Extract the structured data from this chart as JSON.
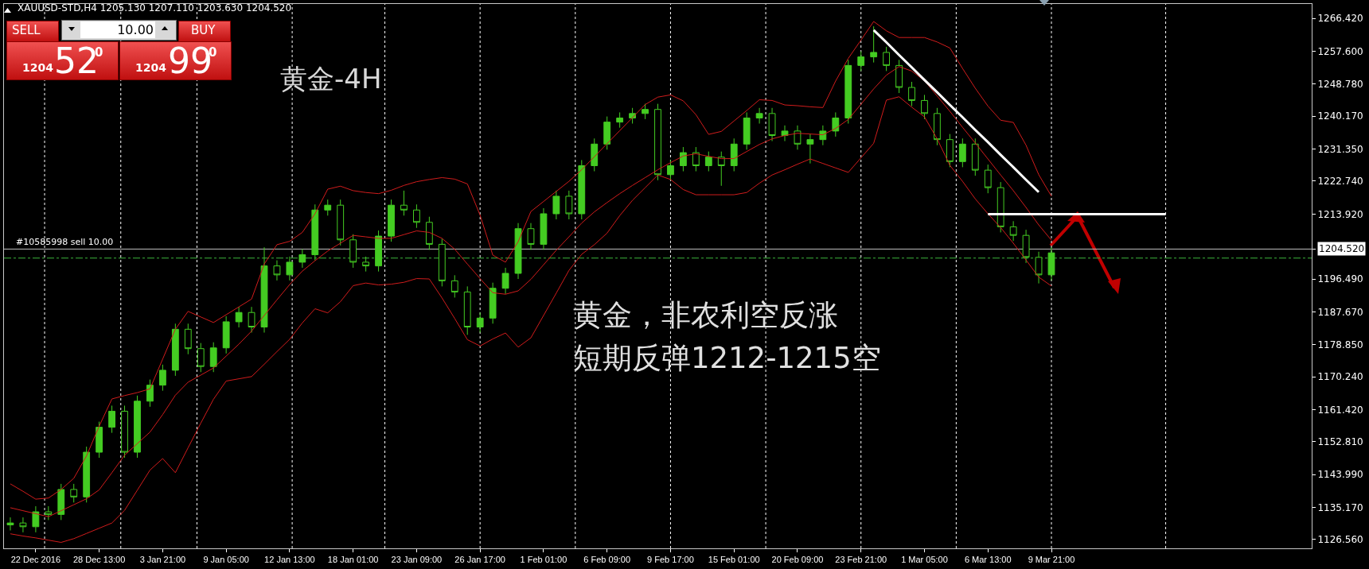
{
  "chart_data": {
    "type": "candlestick",
    "title": "XAUUSD-STD,H4 1205.130 1207.110 1203.630 1204.520",
    "annotations": [
      "黄金-4H",
      "黄金，非农利空反涨",
      "短期反弹1212-1215空",
      "SELL",
      "10.00",
      "BUY",
      "1204",
      "52",
      "0",
      "1204",
      "99",
      "0"
    ],
    "categories": [
      null,
      null,
      "22 Dec 2016",
      null,
      null,
      null,
      null,
      "28 Dec 13:00",
      null,
      null,
      null,
      null,
      "3 Jan 21:00",
      null,
      null,
      null,
      null,
      "9 Jan 05:00",
      null,
      null,
      null,
      null,
      "12 Jan 13:00",
      null,
      null,
      null,
      null,
      "18 Jan 01:00",
      null,
      null,
      null,
      null,
      "23 Jan 09:00",
      null,
      null,
      null,
      null,
      "26 Jan 17:00",
      null,
      null,
      null,
      null,
      "1 Feb 01:00",
      null,
      null,
      null,
      null,
      "6 Feb 09:00",
      null,
      null,
      null,
      null,
      "9 Feb 17:00",
      null,
      null,
      null,
      null,
      "15 Feb 01:00",
      null,
      null,
      null,
      null,
      "20 Feb 09:00",
      null,
      null,
      null,
      null,
      "23 Feb 21:00",
      null,
      null,
      null,
      null,
      "1 Mar 05:00",
      null,
      null,
      null,
      null,
      "6 Mar 13:00",
      null,
      null,
      null,
      null,
      "9 Mar 21:00",
      null,
      null,
      null,
      null,
      null,
      null,
      null,
      null,
      null,
      null,
      null,
      null,
      null,
      null,
      null,
      null,
      null,
      null,
      null,
      null
    ],
    "ylim": [
      1124.2,
      1270.3
    ],
    "yticks": [
      {
        "value": 1266.42,
        "label": "1266.420"
      },
      {
        "value": 1257.6,
        "label": "1257.600"
      },
      {
        "value": 1248.78,
        "label": "1248.780"
      },
      {
        "value": 1240.17,
        "label": "1240.170"
      },
      {
        "value": 1231.35,
        "label": "1231.350"
      },
      {
        "value": 1222.74,
        "label": "1222.740"
      },
      {
        "value": 1213.92,
        "label": "1213.920"
      },
      {
        "value": 1204.52,
        "label": "1204.520"
      },
      {
        "value": 1196.49,
        "label": "1196.490"
      },
      {
        "value": 1187.67,
        "label": "1187.670"
      },
      {
        "value": 1178.85,
        "label": "1178.850"
      },
      {
        "value": 1170.24,
        "label": "1170.240"
      },
      {
        "value": 1161.42,
        "label": "1161.420"
      },
      {
        "value": 1152.81,
        "label": "1152.810"
      },
      {
        "value": 1143.99,
        "label": "1143.990"
      },
      {
        "value": 1135.17,
        "label": "1135.170"
      },
      {
        "value": 1126.56,
        "label": "1126.560"
      }
    ],
    "grid": false,
    "ref_lines": [
      {
        "axis": "y",
        "value": 1204.52,
        "label": "#10585998 sell 10.00",
        "color": "#c0c0c0",
        "line_style": "solid"
      },
      {
        "axis": "y",
        "value": 1202.1,
        "color": "#3cb43c",
        "line_style": "dashed"
      }
    ],
    "series": [
      {
        "type": "line",
        "color": "#d01c1c",
        "values": [
          1141.5,
          1139.5,
          1137.4,
          1137.7,
          1140,
          1143,
          1149,
          1157,
          1164.3,
          1165.2,
          1166,
          1167,
          1175,
          1183,
          1187.8,
          1186.3,
          1184.8,
          1186.9,
          1189,
          1191.1,
          1200.5,
          1205.7,
          1206.6,
          1209,
          1214,
          1220.6,
          1221.4,
          1220.2,
          1219.7,
          1219.4,
          1220.3,
          1221.6,
          1222.6,
          1223.2,
          1223.7,
          1223.3,
          1222,
          1213.6,
          1202.9,
          1201,
          1206.5,
          1214.6,
          1217.3,
          1220,
          1222.7,
          1225.8,
          1229.3,
          1232.8,
          1236.3,
          1239.8,
          1243.3,
          1245.3,
          1245.9,
          1244.3,
          1240.6,
          1235.3,
          1236.1,
          1238.9,
          1241.7,
          1244.6,
          1244.4,
          1243.2,
          1243,
          1242.7,
          1242.5,
          1249.6,
          1255.7,
          1260.6,
          1265.6,
          1263.1,
          1261.3,
          1261.3,
          1261.3,
          1260.1,
          1258.5,
          1253,
          1247.7,
          1242.9,
          1239.1,
          1238.5,
          1232.4,
          1224.5,
          1218.7,
          null,
          null,
          null,
          null,
          null,
          null,
          null,
          null,
          null,
          null,
          null,
          null,
          null,
          null,
          null,
          null,
          null,
          null,
          null,
          null
        ]
      },
      {
        "type": "line",
        "color": "#d01c1c",
        "values": [
          1135.1,
          1134.3,
          1133.5,
          1132.7,
          1134.3,
          1135.9,
          1137.5,
          1139.9,
          1144.5,
          1149.2,
          1152.3,
          1155.4,
          1160.1,
          1165.3,
          1168.8,
          1170.7,
          1172.6,
          1175.8,
          1179,
          1182.5,
          1186.7,
          1190.9,
          1195,
          1198.6,
          1201.4,
          1204,
          1206.1,
          1208.2,
          1207.8,
          1207.4,
          1207.4,
          1208.4,
          1209.4,
          1209,
          1207.4,
          1204.5,
          1200.5,
          1196.6,
          1192.8,
          1192.4,
          1193.3,
          1196.4,
          1200.3,
          1204.2,
          1207.8,
          1211.5,
          1214.5,
          1217,
          1219.4,
          1221.6,
          1223.7,
          1225.8,
          1227.7,
          1229.5,
          1230.1,
          1229.4,
          1228.8,
          1228.8,
          1230.7,
          1232.6,
          1234.1,
          1235,
          1235.6,
          1235.4,
          1235.2,
          1236.9,
          1239.3,
          1243.4,
          1247.5,
          1251.2,
          1253.5,
          1252.3,
          1249.7,
          1245.6,
          1241.5,
          1237.2,
          1233,
          1228.7,
          1224.4,
          1220.2,
          1215.7,
          1211,
          1206.9,
          null,
          null,
          null,
          null,
          null,
          null,
          null,
          null,
          null,
          null,
          null,
          null,
          null,
          null,
          null,
          null,
          null,
          null,
          null,
          null
        ]
      },
      {
        "type": "line",
        "color": "#d01c1c",
        "values": [
          1128.1,
          1127.5,
          1127,
          1126.4,
          1125.8,
          1126.8,
          1128.2,
          1129.6,
          1131,
          1134.4,
          1139.8,
          1145.2,
          1148.3,
          1144.5,
          1151.2,
          1157.8,
          1164.2,
          1169.1,
          1169.7,
          1170.3,
          1173.6,
          1177,
          1180.3,
          1184.7,
          1188.5,
          1187.4,
          1190.4,
          1194.7,
          1195.4,
          1194.9,
          1195.1,
          1195.6,
          1196.6,
          1196.5,
          1191.4,
          1185.9,
          1180.2,
          1178.5,
          1180.4,
          1182,
          1178.2,
          1180.7,
          1186.7,
          1192.7,
          1198.8,
          1203.1,
          1205.7,
          1208.8,
          1213.5,
          1217.6,
          1221,
          1224.4,
          1223.2,
          1220.5,
          1219.1,
          1219.1,
          1219.1,
          1219.1,
          1219.7,
          1222.2,
          1224.4,
          1225.8,
          1227.3,
          1228.7,
          1227.5,
          1226.3,
          1225.1,
          1229,
          1232.9,
          1244.5,
          1245.4,
          1242.6,
          1240,
          1234.1,
          1227,
          1222.7,
          1218,
          1214,
          1210.3,
          1206.1,
          1201.6,
          1197,
          1194.6,
          null,
          null,
          null,
          null,
          null,
          null,
          null,
          null,
          null,
          null,
          null,
          null,
          null,
          null,
          null,
          null,
          null,
          null,
          null,
          null
        ]
      },
      {
        "type": "candlestick",
        "color": "#44cc22",
        "ohlc": [
          [
            1130.5,
            1132.5,
            1129,
            1131
          ],
          [
            1131,
            1132.5,
            1128.5,
            1130
          ],
          [
            1130,
            1135.5,
            1128.5,
            1134
          ],
          [
            1134,
            1135.5,
            1131.8,
            1133.3
          ],
          [
            1133.3,
            1141.5,
            1131.8,
            1140
          ],
          [
            1140,
            1141.5,
            1136.5,
            1138
          ],
          [
            1138,
            1151.5,
            1136.5,
            1150
          ],
          [
            1150,
            1158.2,
            1148.5,
            1156.7
          ],
          [
            1156.7,
            1162.5,
            1155.2,
            1161
          ],
          [
            1161,
            1162.5,
            1148.5,
            1150
          ],
          [
            1150,
            1165.2,
            1148.5,
            1163.7
          ],
          [
            1163.7,
            1169.5,
            1162.2,
            1168
          ],
          [
            1168,
            1173.5,
            1166.5,
            1172
          ],
          [
            1172,
            1184.5,
            1170.5,
            1183
          ],
          [
            1183,
            1184.5,
            1176.3,
            1177.8
          ],
          [
            1177.8,
            1179.3,
            1171.5,
            1173
          ],
          [
            1173,
            1179.5,
            1171.5,
            1178
          ],
          [
            1178,
            1186.5,
            1176.5,
            1185
          ],
          [
            1185,
            1189,
            1183.5,
            1187.5
          ],
          [
            1187.5,
            1189,
            1182.1,
            1183.6
          ],
          [
            1183.6,
            1205,
            1182.1,
            1200
          ],
          [
            1200,
            1201.5,
            1196.1,
            1197.6
          ],
          [
            1197.6,
            1202.5,
            1196.1,
            1201
          ],
          [
            1201,
            1204.5,
            1199.5,
            1203
          ],
          [
            1203,
            1216.5,
            1201.5,
            1215
          ],
          [
            1215,
            1217.8,
            1213.5,
            1216.3
          ],
          [
            1216.3,
            1217.8,
            1205.5,
            1207
          ],
          [
            1207,
            1208.5,
            1199.5,
            1201
          ],
          [
            1201,
            1202.5,
            1198.5,
            1200
          ],
          [
            1200,
            1209.5,
            1198.5,
            1208
          ],
          [
            1208,
            1217.8,
            1206.5,
            1216.3
          ],
          [
            1216.3,
            1220.2,
            1213.5,
            1215
          ],
          [
            1215,
            1216.5,
            1210.2,
            1211.7
          ],
          [
            1211.7,
            1213.2,
            1204.3,
            1205.8
          ],
          [
            1205.8,
            1207.3,
            1194.5,
            1196
          ],
          [
            1196,
            1197.5,
            1191.5,
            1193
          ],
          [
            1193,
            1194.5,
            1181.5,
            1183.6
          ],
          [
            1183.6,
            1187.5,
            1182.1,
            1186
          ],
          [
            1186,
            1195.5,
            1184.5,
            1194
          ],
          [
            1194,
            1199.5,
            1192.5,
            1198
          ],
          [
            1198,
            1211.5,
            1196.5,
            1210
          ],
          [
            1210,
            1211.5,
            1204.3,
            1205.8
          ],
          [
            1205.8,
            1215.5,
            1204.3,
            1214
          ],
          [
            1214,
            1220.2,
            1212.5,
            1218.7
          ],
          [
            1218.7,
            1220.2,
            1212.5,
            1214
          ],
          [
            1214,
            1228.4,
            1212.5,
            1226.9
          ],
          [
            1226.9,
            1234.2,
            1225.4,
            1232.7
          ],
          [
            1232.7,
            1240.1,
            1231.2,
            1238.6
          ],
          [
            1238.6,
            1241.2,
            1237.1,
            1239.7
          ],
          [
            1239.7,
            1242.4,
            1238.2,
            1240.9
          ],
          [
            1240.9,
            1243.5,
            1239.4,
            1242
          ],
          [
            1242,
            1243.5,
            1223,
            1224.5
          ],
          [
            1224.5,
            1228.4,
            1223,
            1226.9
          ],
          [
            1226.9,
            1231.9,
            1225.4,
            1230.4
          ],
          [
            1230.4,
            1231.9,
            1225.4,
            1226.9
          ],
          [
            1226.9,
            1230.7,
            1225.4,
            1229.2
          ],
          [
            1229.2,
            1230.7,
            1221.5,
            1226.9
          ],
          [
            1226.9,
            1234.2,
            1225.4,
            1232.7
          ],
          [
            1232.7,
            1241.2,
            1231.2,
            1239.7
          ],
          [
            1239.7,
            1242.4,
            1238.2,
            1240.9
          ],
          [
            1240.9,
            1242.4,
            1233.5,
            1235
          ],
          [
            1235,
            1237.7,
            1233.5,
            1236.2
          ],
          [
            1236.2,
            1237.7,
            1231.2,
            1232.7
          ],
          [
            1232.7,
            1235.4,
            1227.5,
            1233.9
          ],
          [
            1233.9,
            1237.7,
            1232.4,
            1236.2
          ],
          [
            1236.2,
            1241.2,
            1234.7,
            1239.7
          ],
          [
            1239.7,
            1255.3,
            1238.2,
            1253.8
          ],
          [
            1253.8,
            1257.6,
            1252.3,
            1256.1
          ],
          [
            1256.1,
            1264.3,
            1254.6,
            1257.3
          ],
          [
            1257.3,
            1258.8,
            1252.3,
            1253.8
          ],
          [
            1253.8,
            1255.3,
            1246.4,
            1247.9
          ],
          [
            1247.9,
            1249.4,
            1242.9,
            1244.4
          ],
          [
            1244.4,
            1245.9,
            1239.4,
            1240.9
          ],
          [
            1240.9,
            1242.4,
            1232.4,
            1233.9
          ],
          [
            1233.9,
            1235.4,
            1226.5,
            1228
          ],
          [
            1228,
            1234.2,
            1226.5,
            1232.7
          ],
          [
            1232.7,
            1234.2,
            1224.2,
            1225.7
          ],
          [
            1225.7,
            1227.2,
            1219.5,
            1221
          ],
          [
            1221,
            1222.5,
            1209,
            1210.5
          ],
          [
            1210.5,
            1212,
            1206.7,
            1208.2
          ],
          [
            1208.2,
            1209.7,
            1200.8,
            1202.3
          ],
          [
            1202.3,
            1203.8,
            1195.3,
            1197.6
          ],
          [
            1197.6,
            1205,
            1196.1,
            1203.5
          ],
          null,
          null,
          null,
          null,
          null,
          null,
          null,
          null,
          null,
          null,
          null,
          null,
          null,
          null,
          null,
          null,
          null,
          null,
          null,
          null
        ]
      },
      {
        "type": "line",
        "color": "#ffffff",
        "values": [
          null,
          null,
          null,
          null,
          null,
          null,
          null,
          null,
          null,
          null,
          null,
          null,
          null,
          null,
          null,
          null,
          null,
          null,
          null,
          null,
          null,
          null,
          null,
          null,
          null,
          null,
          null,
          null,
          null,
          null,
          null,
          null,
          null,
          null,
          null,
          null,
          null,
          null,
          null,
          null,
          null,
          null,
          null,
          null,
          null,
          null,
          null,
          null,
          null,
          null,
          null,
          null,
          null,
          null,
          null,
          null,
          null,
          null,
          null,
          null,
          null,
          null,
          null,
          null,
          null,
          null,
          null,
          null,
          1263.3,
          1260,
          1256.6,
          1253.3,
          1249.9,
          1246.6,
          1243.2,
          1239.9,
          1236.5,
          1233.2,
          1229.8,
          1226.5,
          1223.1,
          1219.8,
          null,
          null,
          null,
          null,
          null,
          null,
          null,
          null,
          null,
          null,
          null,
          null,
          null,
          null,
          null,
          null,
          null,
          null,
          null,
          null,
          null
        ]
      },
      {
        "type": "line",
        "color": "#ffffff",
        "values": [
          null,
          null,
          null,
          null,
          null,
          null,
          null,
          null,
          null,
          null,
          null,
          null,
          null,
          null,
          null,
          null,
          null,
          null,
          null,
          null,
          null,
          null,
          null,
          null,
          null,
          null,
          null,
          null,
          null,
          null,
          null,
          null,
          null,
          null,
          null,
          null,
          null,
          null,
          null,
          null,
          null,
          null,
          null,
          null,
          null,
          null,
          null,
          null,
          null,
          null,
          null,
          null,
          null,
          null,
          null,
          null,
          null,
          null,
          null,
          null,
          null,
          null,
          null,
          null,
          null,
          null,
          null,
          null,
          null,
          null,
          null,
          null,
          null,
          null,
          null,
          null,
          null,
          1213.9,
          1213.9,
          1213.9,
          1213.9,
          1213.9,
          1213.9,
          1213.9,
          1213.9,
          1213.9,
          1213.9,
          1213.9,
          1213.9,
          1213.9,
          1213.9,
          1213.9,
          null,
          null,
          null,
          null,
          null,
          null,
          null,
          null,
          null,
          null,
          null
        ]
      }
    ]
  }
}
